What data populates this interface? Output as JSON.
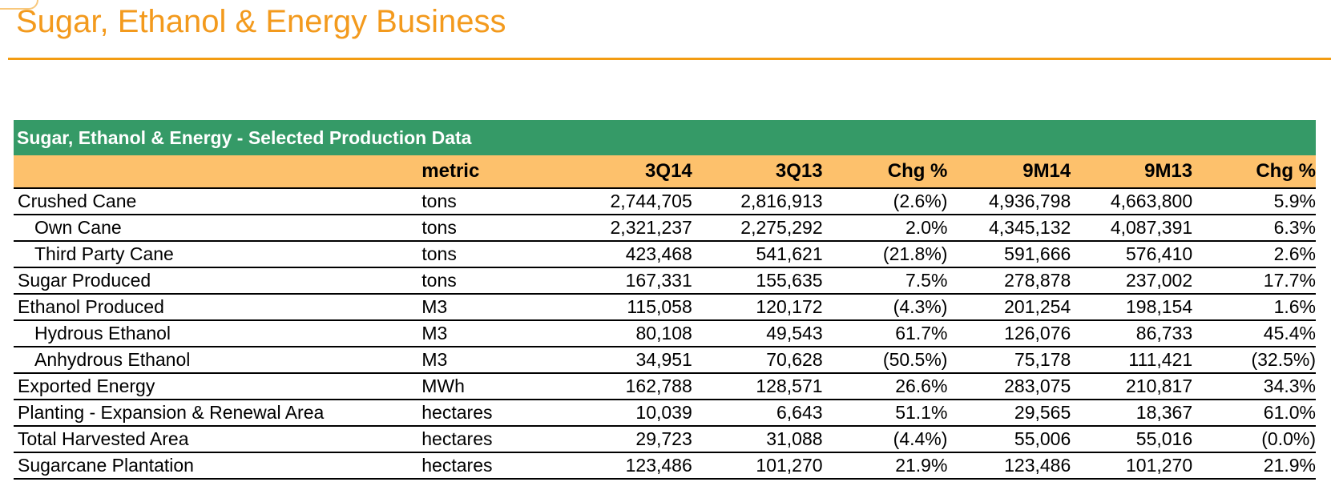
{
  "page": {
    "title": "Sugar, Ethanol & Energy Business"
  },
  "table": {
    "banner": "Sugar, Ethanol & Energy - Selected Production Data",
    "columns": {
      "metric": "metric",
      "q14": "3Q14",
      "q13": "3Q13",
      "chg1": "Chg %",
      "m14": "9M14",
      "m13": "9M13",
      "chg2": "Chg %"
    },
    "rows": [
      {
        "label": "Crushed Cane",
        "indent": false,
        "metric": "tons",
        "q14": "2,744,705",
        "q13": "2,816,913",
        "chg1": "(2.6%)",
        "m14": "4,936,798",
        "m13": "4,663,800",
        "chg2": "5.9%"
      },
      {
        "label": "Own Cane",
        "indent": true,
        "metric": "tons",
        "q14": "2,321,237",
        "q13": "2,275,292",
        "chg1": "2.0%",
        "m14": "4,345,132",
        "m13": "4,087,391",
        "chg2": "6.3%"
      },
      {
        "label": "Third Party Cane",
        "indent": true,
        "metric": "tons",
        "q14": "423,468",
        "q13": "541,621",
        "chg1": "(21.8%)",
        "m14": "591,666",
        "m13": "576,410",
        "chg2": "2.6%"
      },
      {
        "label": "Sugar Produced",
        "indent": false,
        "metric": "tons",
        "q14": "167,331",
        "q13": "155,635",
        "chg1": "7.5%",
        "m14": "278,878",
        "m13": "237,002",
        "chg2": "17.7%"
      },
      {
        "label": "Ethanol Produced",
        "indent": false,
        "metric": "M3",
        "q14": "115,058",
        "q13": "120,172",
        "chg1": "(4.3%)",
        "m14": "201,254",
        "m13": "198,154",
        "chg2": "1.6%"
      },
      {
        "label": "Hydrous Ethanol",
        "indent": true,
        "metric": "M3",
        "q14": "80,108",
        "q13": "49,543",
        "chg1": "61.7%",
        "m14": "126,076",
        "m13": "86,733",
        "chg2": "45.4%"
      },
      {
        "label": "Anhydrous Ethanol",
        "indent": true,
        "metric": "M3",
        "q14": "34,951",
        "q13": "70,628",
        "chg1": "(50.5%)",
        "m14": "75,178",
        "m13": "111,421",
        "chg2": "(32.5%)"
      },
      {
        "label": "Exported Energy",
        "indent": false,
        "metric": "MWh",
        "q14": "162,788",
        "q13": "128,571",
        "chg1": "26.6%",
        "m14": "283,075",
        "m13": "210,817",
        "chg2": "34.3%"
      },
      {
        "label": "Planting - Expansion & Renewal Area",
        "indent": false,
        "metric": "hectares",
        "q14": "10,039",
        "q13": "6,643",
        "chg1": "51.1%",
        "m14": "29,565",
        "m13": "18,367",
        "chg2": "61.0%"
      },
      {
        "label": "Total Harvested Area",
        "indent": false,
        "metric": "hectares",
        "q14": "29,723",
        "q13": "31,088",
        "chg1": "(4.4%)",
        "m14": "55,006",
        "m13": "55,016",
        "chg2": "(0.0%)"
      },
      {
        "label": "Sugarcane Plantation",
        "indent": false,
        "metric": "hectares",
        "q14": "123,486",
        "q13": "101,270",
        "chg1": "21.9%",
        "m14": "123,486",
        "m13": "101,270",
        "chg2": "21.9%"
      }
    ]
  },
  "colors": {
    "title": "#f39a1d",
    "rule": "#f39c12",
    "banner": "#359a67",
    "header": "#fdc16c"
  }
}
